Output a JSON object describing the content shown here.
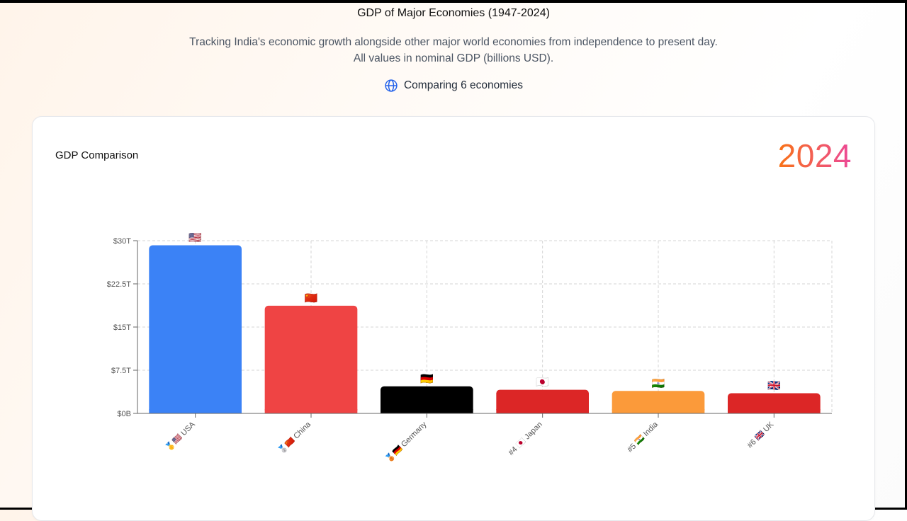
{
  "header": {
    "title": "GDP of Major Economies (1947-2024)",
    "subtitle": "Tracking India's economic growth alongside other major world economies from independence to present day. All values in nominal GDP (billions USD).",
    "compare_label": "Comparing 6 economies"
  },
  "card": {
    "title": "GDP Comparison",
    "year": "2024"
  },
  "chart_data": {
    "type": "bar",
    "title": "GDP Comparison",
    "categories": [
      "USA",
      "China",
      "Germany",
      "Japan",
      "India",
      "UK"
    ],
    "category_labels": [
      "🥇🇺🇸 USA",
      "🥈🇨🇳 China",
      "🥉🇩🇪 Germany",
      "#4 🇯🇵 Japan",
      "#5 🇮🇳 India",
      "#6 🇬🇧 UK"
    ],
    "flags": [
      "🇺🇸",
      "🇨🇳",
      "🇩🇪",
      "🇯🇵",
      "🇮🇳",
      "🇬🇧"
    ],
    "values": [
      29.2,
      18.7,
      4.7,
      4.1,
      3.9,
      3.5
    ],
    "colors": [
      "#3b82f6",
      "#ef4444",
      "#000000",
      "#dc2626",
      "#fb9a3a",
      "#dc2626"
    ],
    "ylim": [
      0,
      30
    ],
    "yticks": [
      0,
      7.5,
      15,
      22.5,
      30
    ],
    "ytick_labels": [
      "$0B",
      "$7.5T",
      "$15T",
      "$22.5T",
      "$30T"
    ],
    "grid": true,
    "xlabel": "",
    "ylabel": ""
  }
}
